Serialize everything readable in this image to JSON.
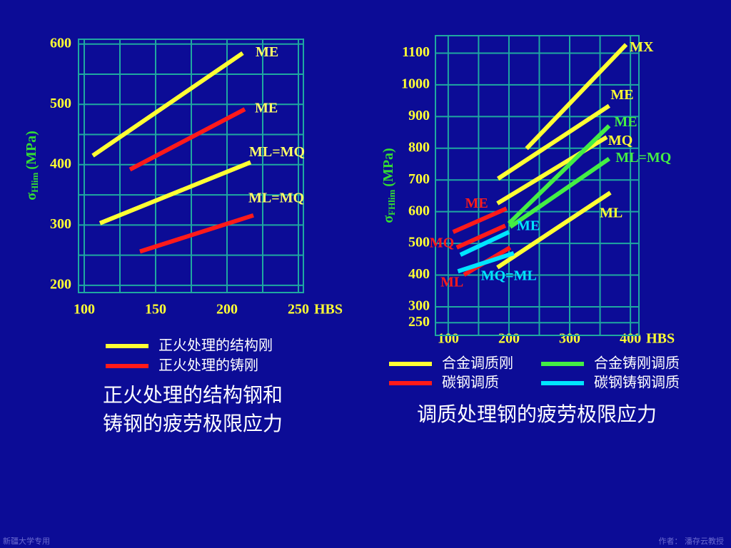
{
  "chart_data": [
    {
      "type": "line",
      "title": [
        "正火处理的结构钢和",
        "铸钢的疲劳极限应力"
      ],
      "y_label": {
        "symbol": "σ",
        "subscript": "Hlim",
        "unit": "(MPa)"
      },
      "x_label": "HBS",
      "xlim": [
        96,
        253.5
      ],
      "ylim": [
        188,
        608
      ],
      "xticks": [
        100,
        150,
        200,
        250
      ],
      "yticks": [
        200,
        300,
        400,
        500,
        600
      ],
      "xgrid": "minor",
      "ygrid": "minor",
      "label_color": "#ffff66",
      "series": [
        {
          "name": "ME",
          "color": "#ffff33",
          "x": [
            106,
            211
          ],
          "values": [
            415,
            585
          ]
        },
        {
          "name": "ME",
          "color": "#ff1a1a",
          "x": [
            132,
            212.5
          ],
          "values": [
            392,
            492
          ]
        },
        {
          "name": "ML=MQ",
          "color": "#ffff33",
          "x": [
            111,
            216.5
          ],
          "values": [
            303,
            404
          ]
        },
        {
          "name": "ML=MQ",
          "color": "#ff1a1a",
          "x": [
            139,
            218.5
          ],
          "values": [
            256,
            316
          ]
        }
      ],
      "legend": [
        {
          "name": "正火处理的结构刚",
          "color": "#ffff33"
        },
        {
          "name": "正火处理的铸刚",
          "color": "#ff1a1a"
        }
      ]
    },
    {
      "type": "line",
      "title": [
        "调质处理钢的疲劳极限应力"
      ],
      "y_label": {
        "symbol": "σ",
        "subscript": "FHlim",
        "unit": "(MPa)"
      },
      "x_label": "HBS",
      "xlim": [
        79,
        414
      ],
      "ylim": [
        210,
        1155
      ],
      "xticks": [
        100,
        200,
        300,
        400
      ],
      "yticks": [
        250,
        300,
        400,
        500,
        600,
        700,
        800,
        900,
        1000,
        1100
      ],
      "xgrid": "minor",
      "ygrid": "major",
      "series": [
        {
          "name": "MX",
          "color": "#ffff33",
          "x": [
            229,
            393
          ],
          "values": [
            799,
            1127
          ]
        },
        {
          "name": "ME",
          "color": "#ffff33",
          "x": [
            182,
            365
          ],
          "values": [
            704,
            934
          ]
        },
        {
          "name": "MQ",
          "color": "#ffff33",
          "x": [
            181,
            361
          ],
          "values": [
            626,
            835
          ]
        },
        {
          "name": "ML",
          "color": "#ffff33",
          "x": [
            181,
            367
          ],
          "values": [
            424,
            660
          ]
        },
        {
          "name": "ME",
          "color": "#44ee44",
          "x": [
            200,
            365
          ],
          "values": [
            563,
            871
          ]
        },
        {
          "name": "ML=MQ",
          "color": "#44ee44",
          "x": [
            202,
            365
          ],
          "values": [
            552,
            767
          ]
        },
        {
          "name": "ME",
          "color": "#ff1a1a",
          "x": [
            108,
            196
          ],
          "values": [
            536,
            610
          ]
        },
        {
          "name": "MQ",
          "color": "#ff1a1a",
          "x": [
            114,
            194
          ],
          "values": [
            487,
            556
          ]
        },
        {
          "name": "ML",
          "color": "#ff1a1a",
          "x": [
            126,
            202
          ],
          "values": [
            401,
            487
          ]
        },
        {
          "name": "ME",
          "color": "#00e5ff",
          "x": [
            120,
            200
          ],
          "values": [
            464,
            536
          ]
        },
        {
          "name": "MQ=ML",
          "color": "#00e5ff",
          "x": [
            116,
            208
          ],
          "values": [
            412,
            469
          ]
        }
      ],
      "legend": [
        {
          "name": "合金调质刚",
          "color": "#ffff33"
        },
        {
          "name": "合金铸刚调质",
          "color": "#44ee44"
        },
        {
          "name": "碳钢调质",
          "color": "#ff1a1a"
        },
        {
          "name": "碳钢铸钢调质",
          "color": "#00e5ff"
        }
      ]
    }
  ],
  "footer": {
    "left": "新疆大学专用",
    "right": "作者： 潘存云教授"
  }
}
